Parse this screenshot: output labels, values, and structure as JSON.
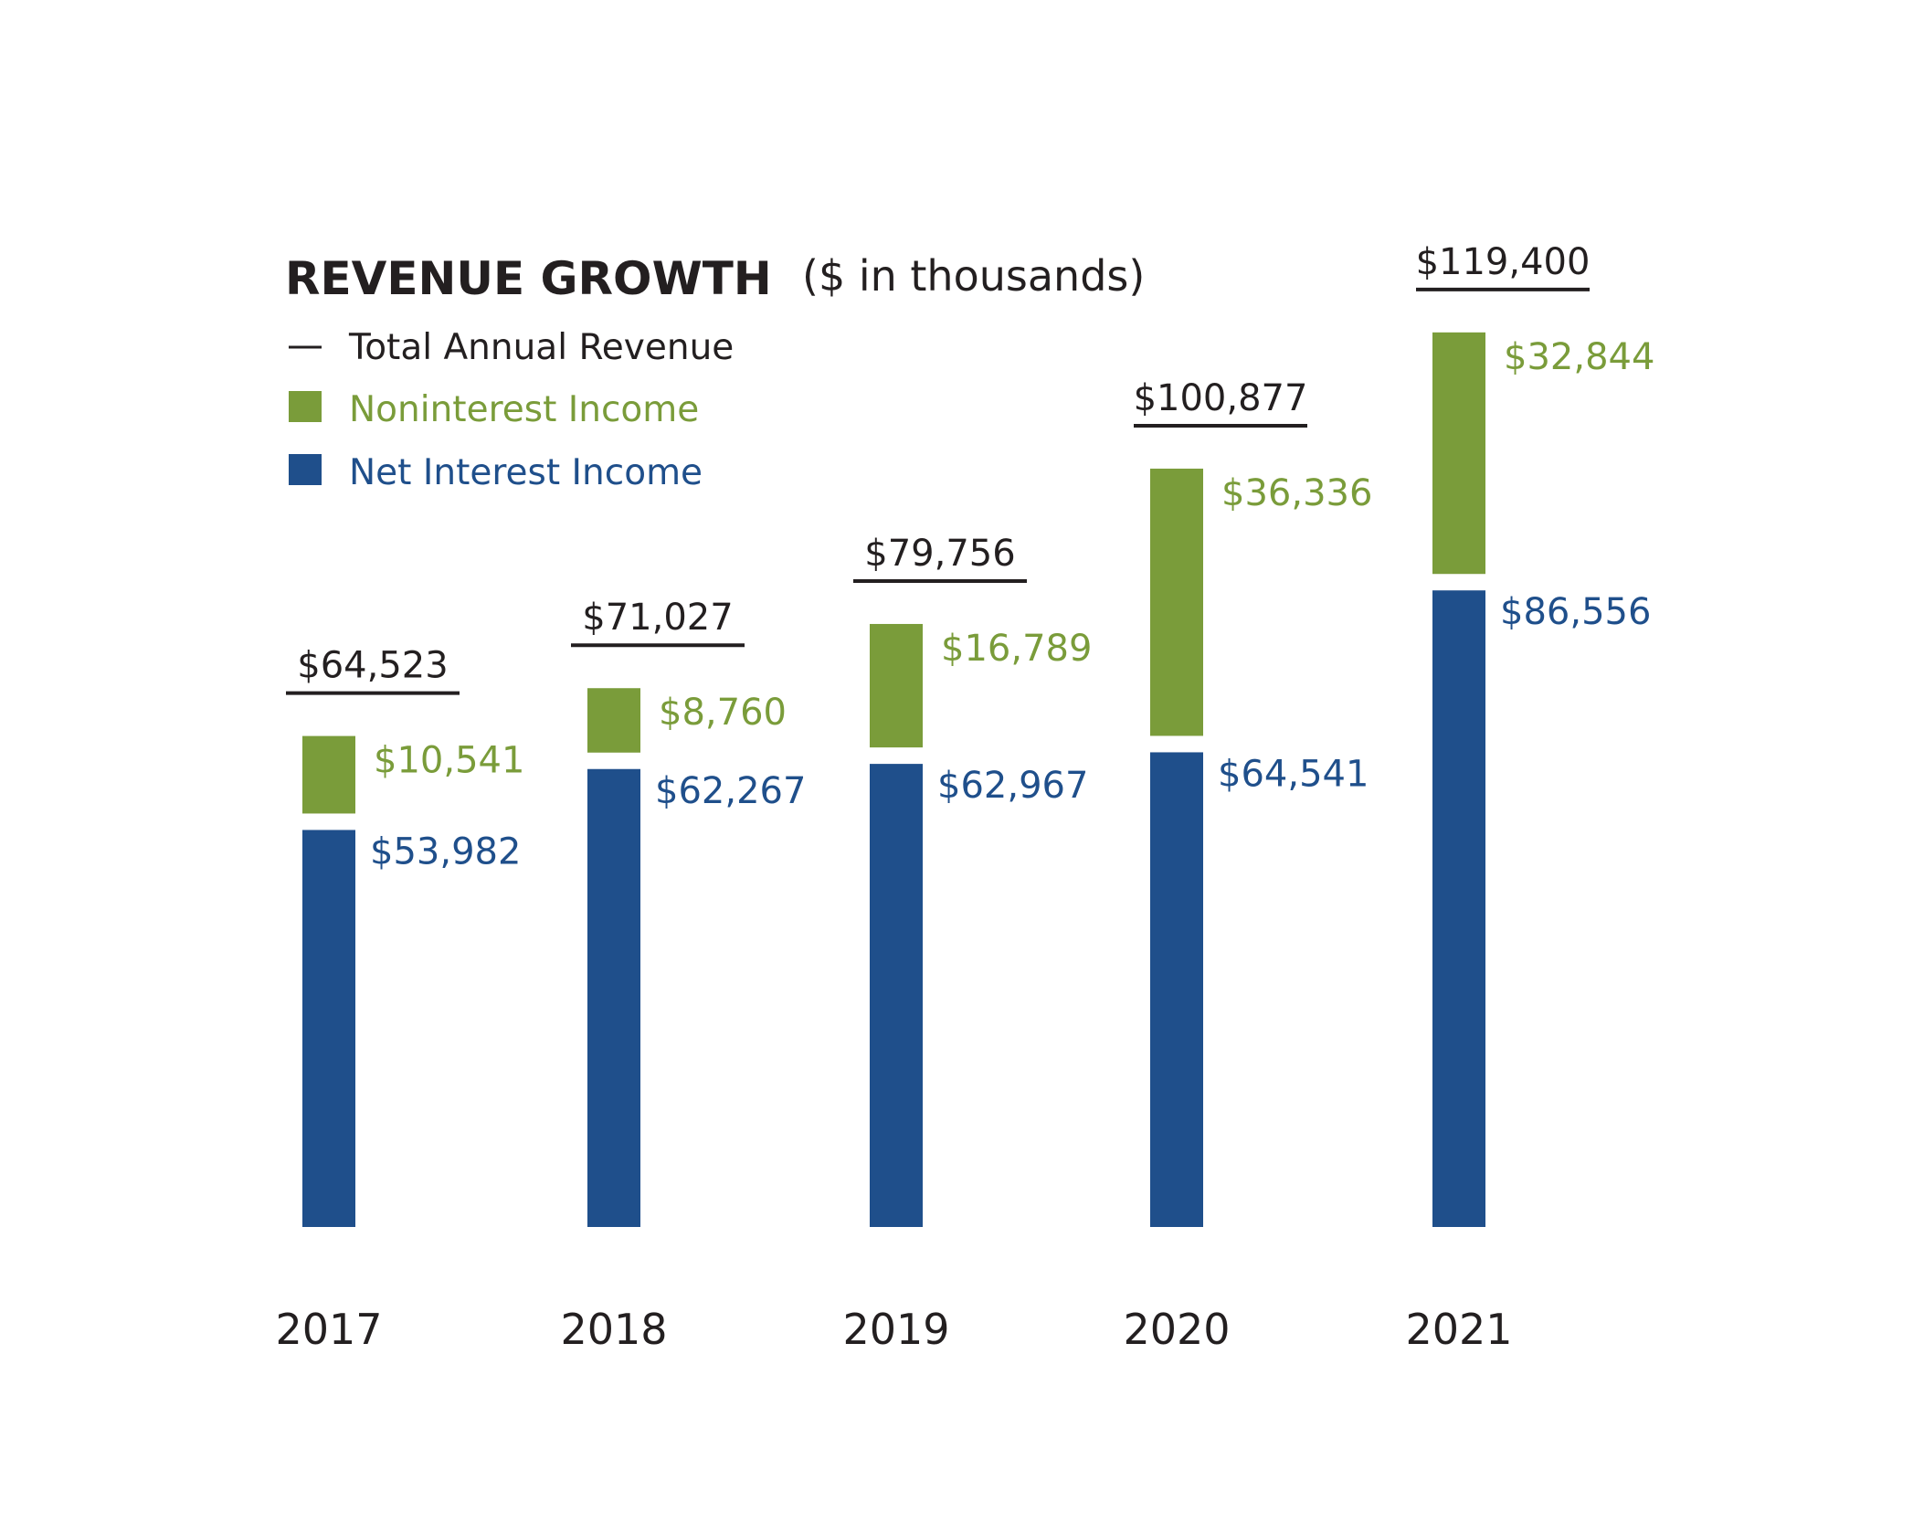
{
  "chart_data": {
    "type": "bar",
    "stacked": true,
    "title": "REVENUE GROWTH",
    "subtitle": "($ in thousands)",
    "categories": [
      "2017",
      "2018",
      "2019",
      "2020",
      "2021"
    ],
    "series": [
      {
        "name": "Net Interest Income",
        "values": [
          53982,
          62267,
          62967,
          64541,
          86556
        ],
        "labels": [
          "$53,982",
          "$62,267",
          "$62,967",
          "$64,541",
          "$86,556"
        ]
      },
      {
        "name": "Noninterest Income",
        "values": [
          10541,
          8760,
          16789,
          36336,
          32844
        ],
        "labels": [
          "$10,541",
          "$8,760",
          "$16,789",
          "$36,336",
          "$32,844"
        ]
      }
    ],
    "totals": {
      "name": "Total Annual Revenue",
      "values": [
        64523,
        71027,
        79756,
        100877,
        119400
      ],
      "labels": [
        "$64,523",
        "$71,027",
        "$79,756",
        "$100,877",
        "$119,400"
      ]
    },
    "legend": {
      "position": "top-left",
      "total_label": "Total Annual Revenue",
      "noninterest_label": "Noninterest Income",
      "net_interest_label": "Net Interest Income"
    },
    "colors": {
      "net_interest": "#1f4f8b",
      "noninterest": "#7a9c3a",
      "text": "#231f20"
    },
    "xlabel": "",
    "ylabel": "",
    "grid": false
  }
}
